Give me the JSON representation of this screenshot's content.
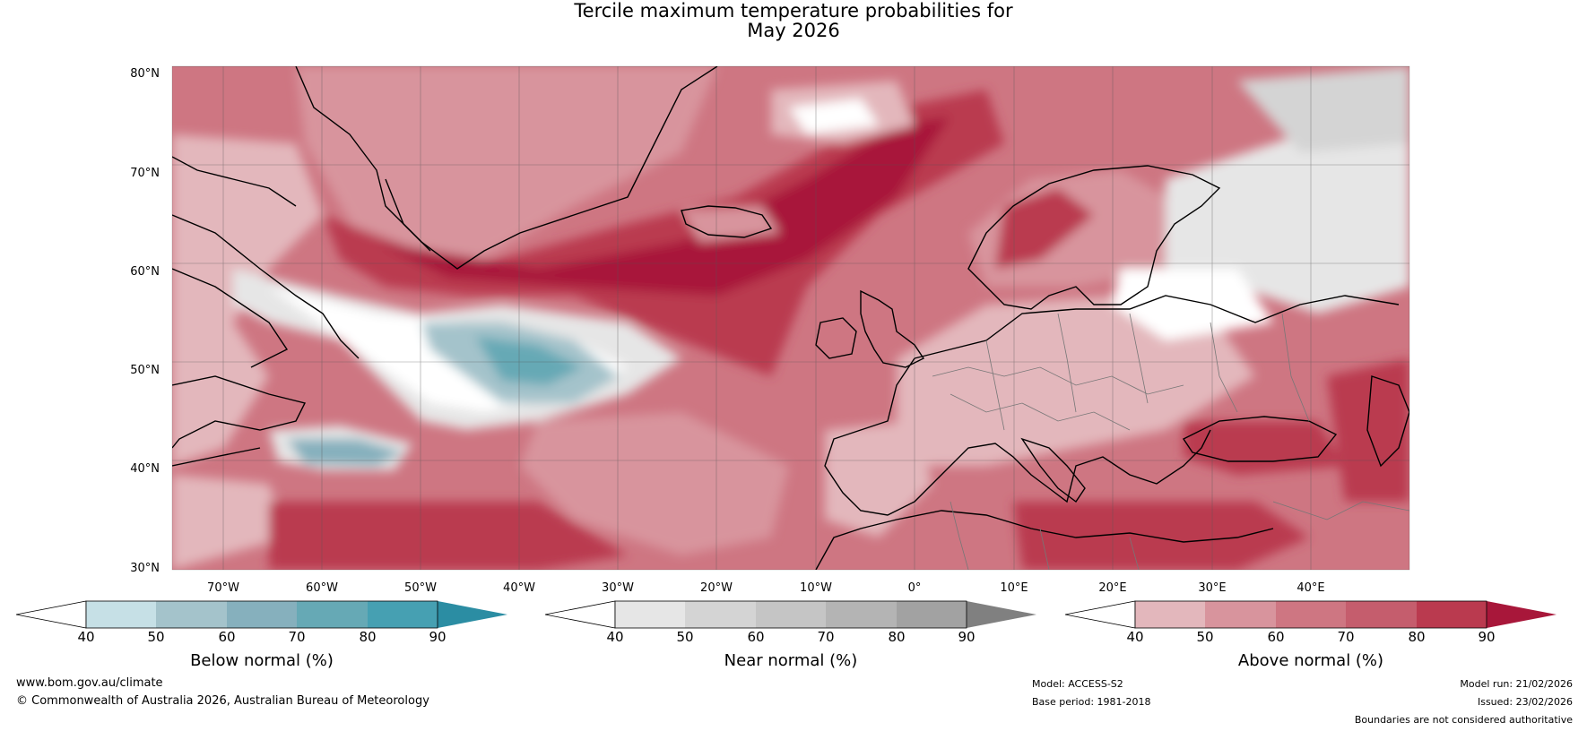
{
  "title": {
    "line1": "Tercile maximum temperature probabilities for",
    "line2": "May 2026"
  },
  "map": {
    "lat_labels": [
      "80°N",
      "70°N",
      "60°N",
      "50°N",
      "40°N",
      "30°N"
    ],
    "lon_labels": [
      "70°W",
      "60°W",
      "50°W",
      "40°W",
      "30°W",
      "20°W",
      "10°W",
      "0°",
      "10°E",
      "20°E",
      "30°E",
      "40°E"
    ]
  },
  "colorbars": [
    {
      "title": "Below normal (%)",
      "ticks": [
        "40",
        "50",
        "60",
        "70",
        "80",
        "90"
      ],
      "colors": [
        "#ffffff",
        "#c6e0e6",
        "#a4c3cb",
        "#86b0bd",
        "#66a9b5",
        "#46a0b2",
        "#2b8da3"
      ]
    },
    {
      "title": "Near normal (%)",
      "ticks": [
        "40",
        "50",
        "60",
        "70",
        "80",
        "90"
      ],
      "colors": [
        "#ffffff",
        "#e6e6e6",
        "#d4d4d4",
        "#c5c5c5",
        "#b4b4b4",
        "#a2a2a2",
        "#808080"
      ]
    },
    {
      "title": "Above normal (%)",
      "ticks": [
        "40",
        "50",
        "60",
        "70",
        "80",
        "90"
      ],
      "colors": [
        "#ffffff",
        "#e3b7bc",
        "#d8949d",
        "#ce7682",
        "#c55d6d",
        "#ba3a4f",
        "#a8173a"
      ]
    }
  ],
  "footer": {
    "website": "www.bom.gov.au/climate",
    "copyright": "© Commonwealth of Australia 2026, Australian Bureau of Meteorology",
    "model": "Model: ACCESS-S2",
    "base_period": "Base period: 1981-2018",
    "model_run": "Model run: 21/02/2026",
    "issued": "Issued: 23/02/2026",
    "disclaimer": "Boundaries are not considered authoritative"
  }
}
